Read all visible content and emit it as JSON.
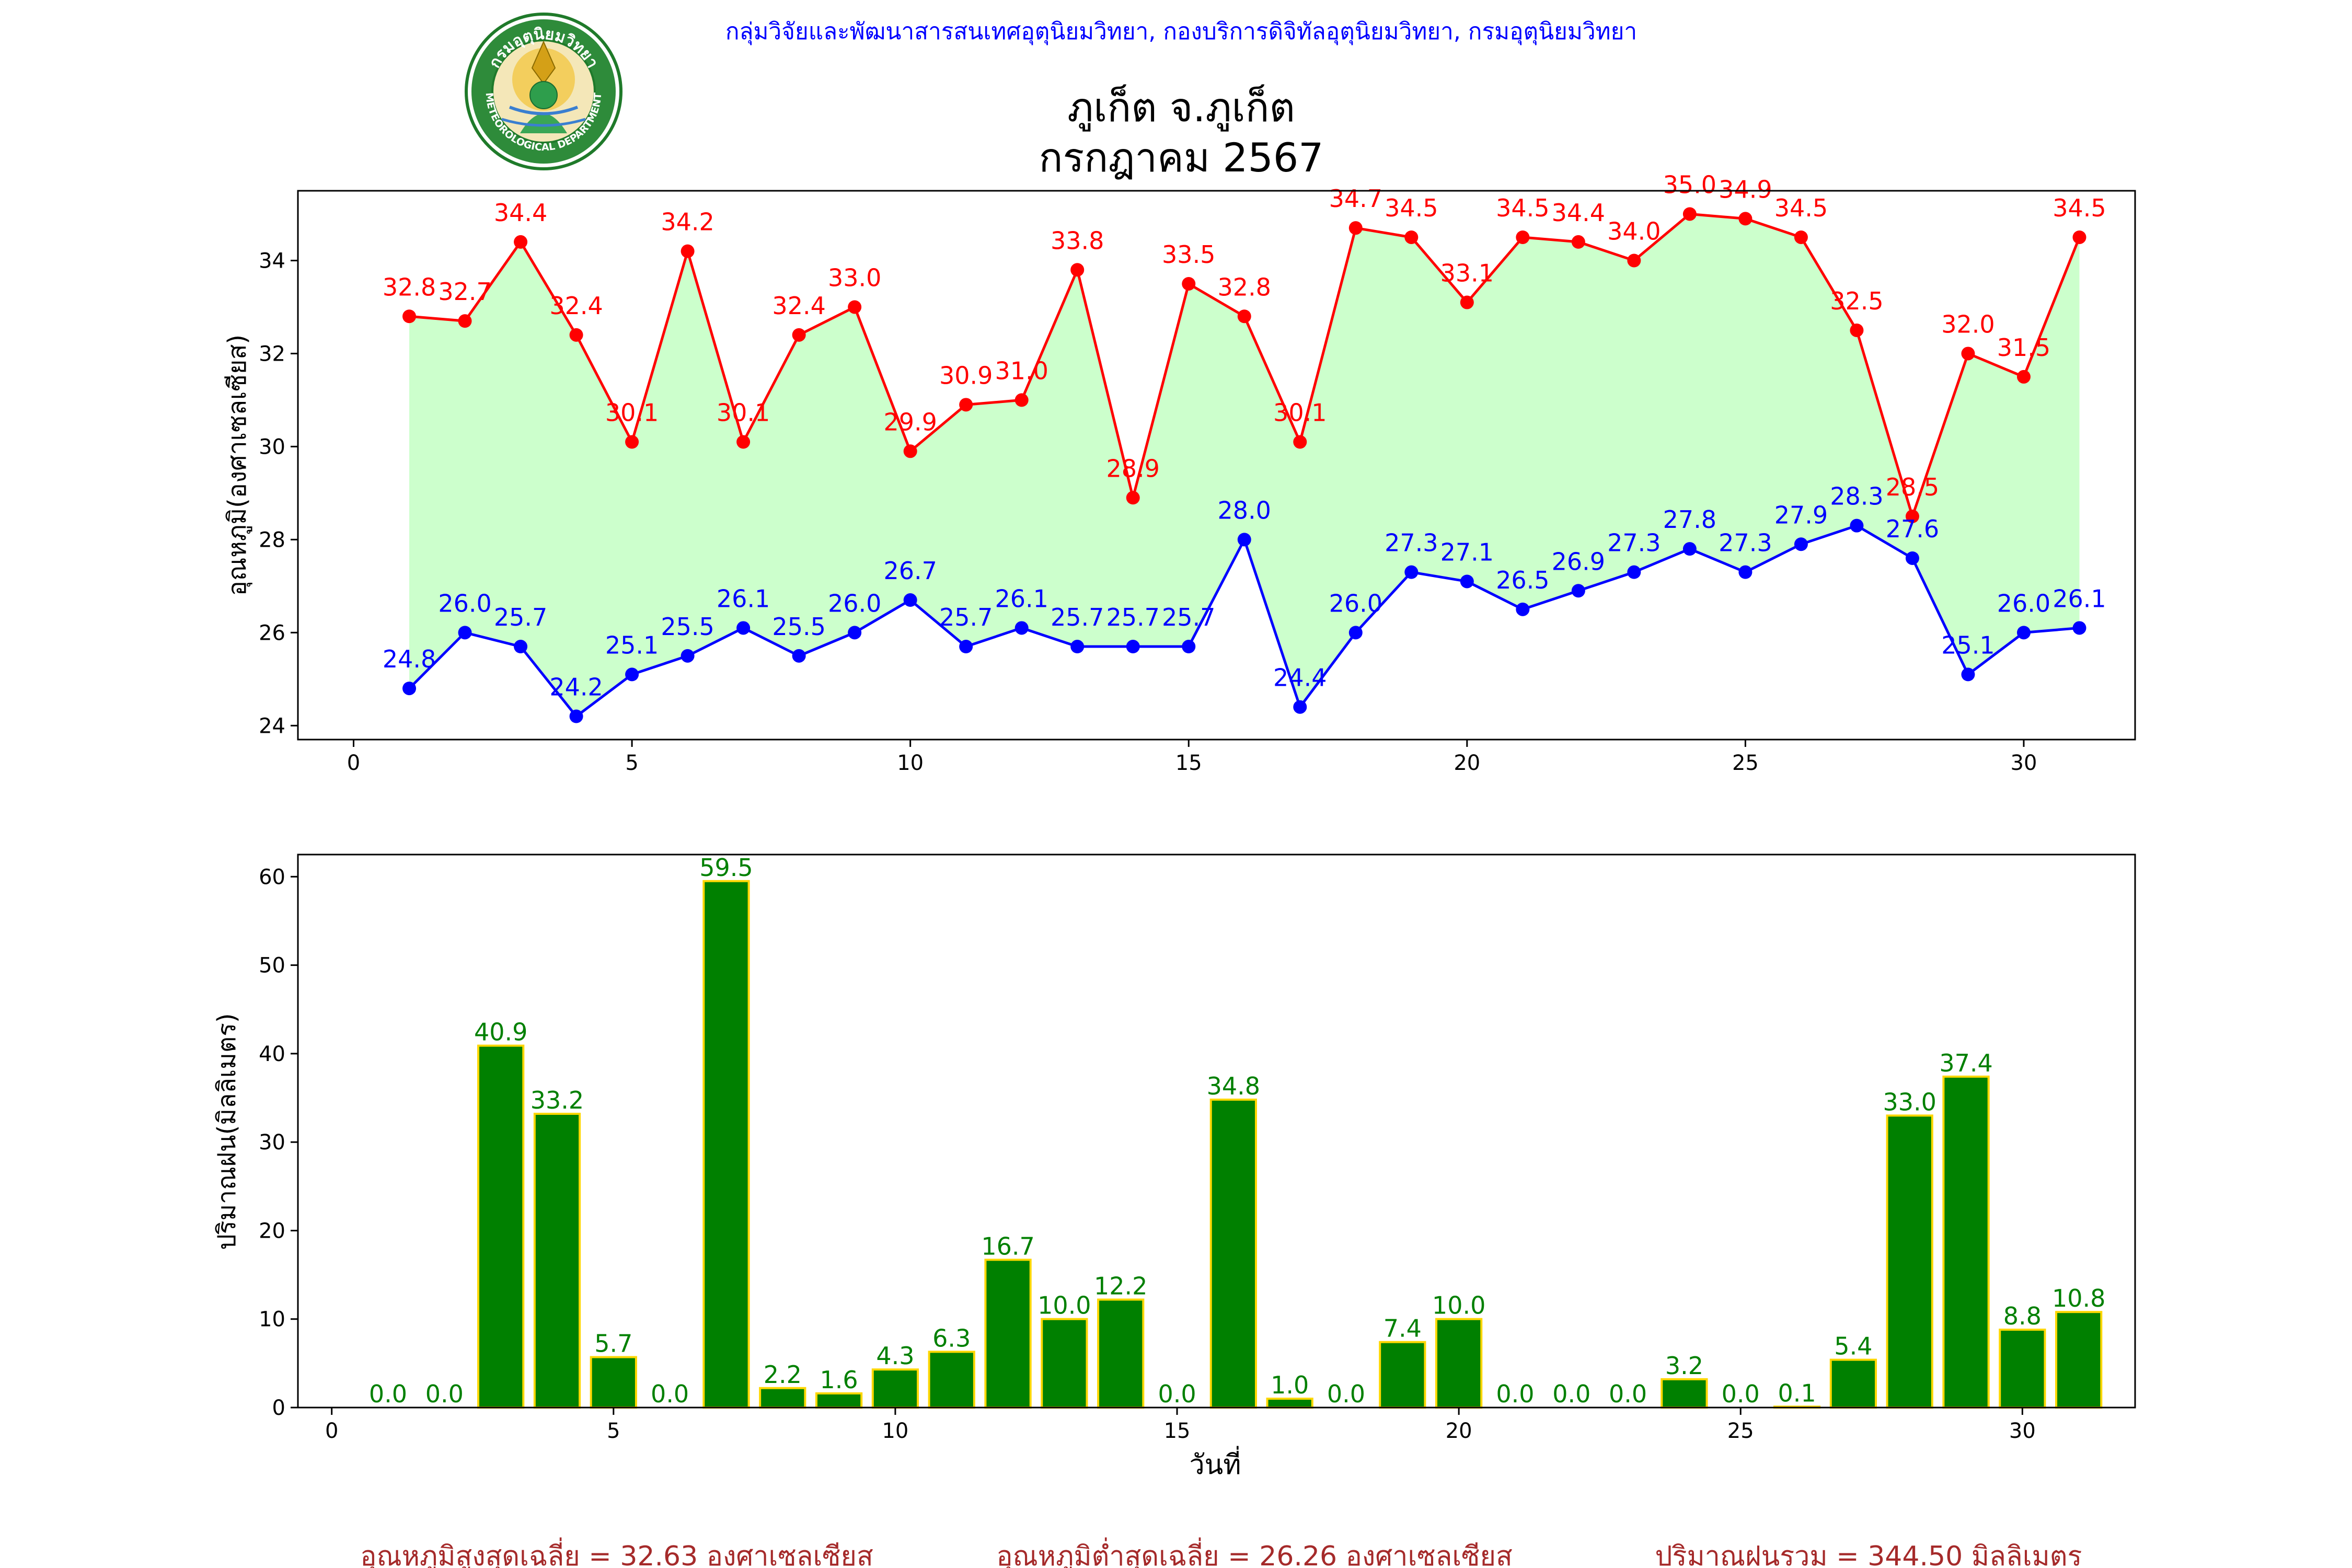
{
  "header": {
    "org_line": "กลุ่มวิจัยและพัฒนาสารสนเทศอุตุนิยมวิทยา, กองบริการดิจิทัลอุตุนิยมวิทยา, กรมอุตุนิยมวิทยา",
    "logo_top_text": "กรมอุตุนิยมวิทยา",
    "logo_bottom_text": "METEOROLOGICAL DEPARTMENT"
  },
  "title": {
    "line1": "ภูเก็ต จ.ภูเก็ต",
    "line2": "กรกฎาคม 2567"
  },
  "summary": {
    "avg_max": "อุณหภูมิสูงสุดเฉลี่ย = 32.63 องศาเซลเซียส",
    "avg_min": "อุณหภูมิต่ำสุดเฉลี่ย = 26.26 องศาเซลเซียส",
    "total_rain": "ปริมาณฝนรวม = 344.50 มิลลิเมตร"
  },
  "colors": {
    "max_line": "#ff0000",
    "min_line": "#0000ff",
    "band_fill": "#ccffcc",
    "bar_fill": "#008000",
    "bar_edge": "#ffd700",
    "bar_label": "#008000",
    "header_text": "#0000ff",
    "summary_text": "#a52a2a"
  },
  "chart_data": [
    {
      "type": "line",
      "ylabel": "อุณหภูมิ(องศาเซลเซียส)",
      "xlabel": "",
      "xlim": [
        -1,
        32
      ],
      "ylim": [
        23.7,
        35.5
      ],
      "xticks": [
        0,
        5,
        10,
        15,
        20,
        25,
        30
      ],
      "yticks": [
        24,
        26,
        28,
        30,
        32,
        34
      ],
      "x": [
        1,
        2,
        3,
        4,
        5,
        6,
        7,
        8,
        9,
        10,
        11,
        12,
        13,
        14,
        15,
        16,
        17,
        18,
        19,
        20,
        21,
        22,
        23,
        24,
        25,
        26,
        27,
        28,
        29,
        30,
        31
      ],
      "series": [
        {
          "key": "max",
          "values": [
            32.8,
            32.7,
            34.4,
            32.4,
            30.1,
            34.2,
            30.1,
            32.4,
            33.0,
            29.9,
            30.9,
            31.0,
            33.8,
            28.9,
            33.5,
            32.8,
            30.1,
            34.7,
            34.5,
            33.1,
            34.5,
            34.4,
            34.0,
            35.0,
            34.9,
            34.5,
            32.5,
            28.5,
            32.0,
            31.5,
            34.5
          ],
          "labels": [
            "32.8",
            "32.7",
            "34.4",
            "32.4",
            "30.1",
            "34.2",
            "30.1",
            "32.4",
            "33.0",
            "29.9",
            "30.9",
            "31.0",
            "33.8",
            "28.9",
            "33.5",
            "32.8",
            "30.1",
            "34.7",
            "34.5",
            "33.1",
            "34.5",
            "34.4",
            "34.0",
            "35.0",
            "34.9",
            "34.5",
            "32.5",
            "28.5",
            "32.0",
            "31.5",
            "34.5"
          ]
        },
        {
          "key": "min",
          "values": [
            24.8,
            26.0,
            25.7,
            24.2,
            25.1,
            25.5,
            26.1,
            25.5,
            26.0,
            26.7,
            25.7,
            26.1,
            25.7,
            25.7,
            25.7,
            28.0,
            24.4,
            26.0,
            27.3,
            27.1,
            26.5,
            26.9,
            27.3,
            27.8,
            27.3,
            27.9,
            28.3,
            27.6,
            25.1,
            26.0,
            26.1
          ],
          "labels": [
            "24.8",
            "26.0",
            "25.7",
            "24.2",
            "25.1",
            "25.5",
            "26.1",
            "25.5",
            "26.0",
            "26.7",
            "25.7",
            "26.1",
            "25.7",
            "25.7",
            "25.7",
            "28.0",
            "24.4",
            "26.0",
            "27.3",
            "27.1",
            "26.5",
            "26.9",
            "27.3",
            "27.8",
            "27.3",
            "27.9",
            "28.3",
            "27.6",
            "25.1",
            "26.0",
            "26.1"
          ]
        }
      ],
      "fill_between": true,
      "grid": false
    },
    {
      "type": "bar",
      "ylabel": "ปริมาณฝน(มิลลิเมตร)",
      "xlabel": "วันที่",
      "xlim": [
        -0.6,
        32
      ],
      "ylim": [
        0,
        62.5
      ],
      "xticks": [
        0,
        5,
        10,
        15,
        20,
        25,
        30
      ],
      "yticks": [
        0,
        10,
        20,
        30,
        40,
        50,
        60
      ],
      "x": [
        1,
        2,
        3,
        4,
        5,
        6,
        7,
        8,
        9,
        10,
        11,
        12,
        13,
        14,
        15,
        16,
        17,
        18,
        19,
        20,
        21,
        22,
        23,
        24,
        25,
        26,
        27,
        28,
        29,
        30,
        31
      ],
      "values": [
        0.0,
        0.0,
        40.9,
        33.2,
        5.7,
        0.0,
        59.5,
        2.2,
        1.6,
        4.3,
        6.3,
        16.7,
        10.0,
        12.2,
        0.0,
        34.8,
        1.0,
        0.0,
        7.4,
        10.0,
        0.0,
        0.0,
        0.0,
        3.2,
        0.0,
        0.1,
        5.4,
        33.0,
        37.4,
        8.8,
        10.8
      ],
      "labels": [
        "0.0",
        "0.0",
        "40.9",
        "33.2",
        "5.7",
        "0.0",
        "59.5",
        "2.2",
        "1.6",
        "4.3",
        "6.3",
        "16.7",
        "10.0",
        "12.2",
        "0.0",
        "34.8",
        "1.0",
        "0.0",
        "7.4",
        "10.0",
        "0.0",
        "0.0",
        "0.0",
        "3.2",
        "0.0",
        "0.1",
        "5.4",
        "33.0",
        "37.4",
        "8.8",
        "10.8"
      ],
      "grid": false
    }
  ]
}
